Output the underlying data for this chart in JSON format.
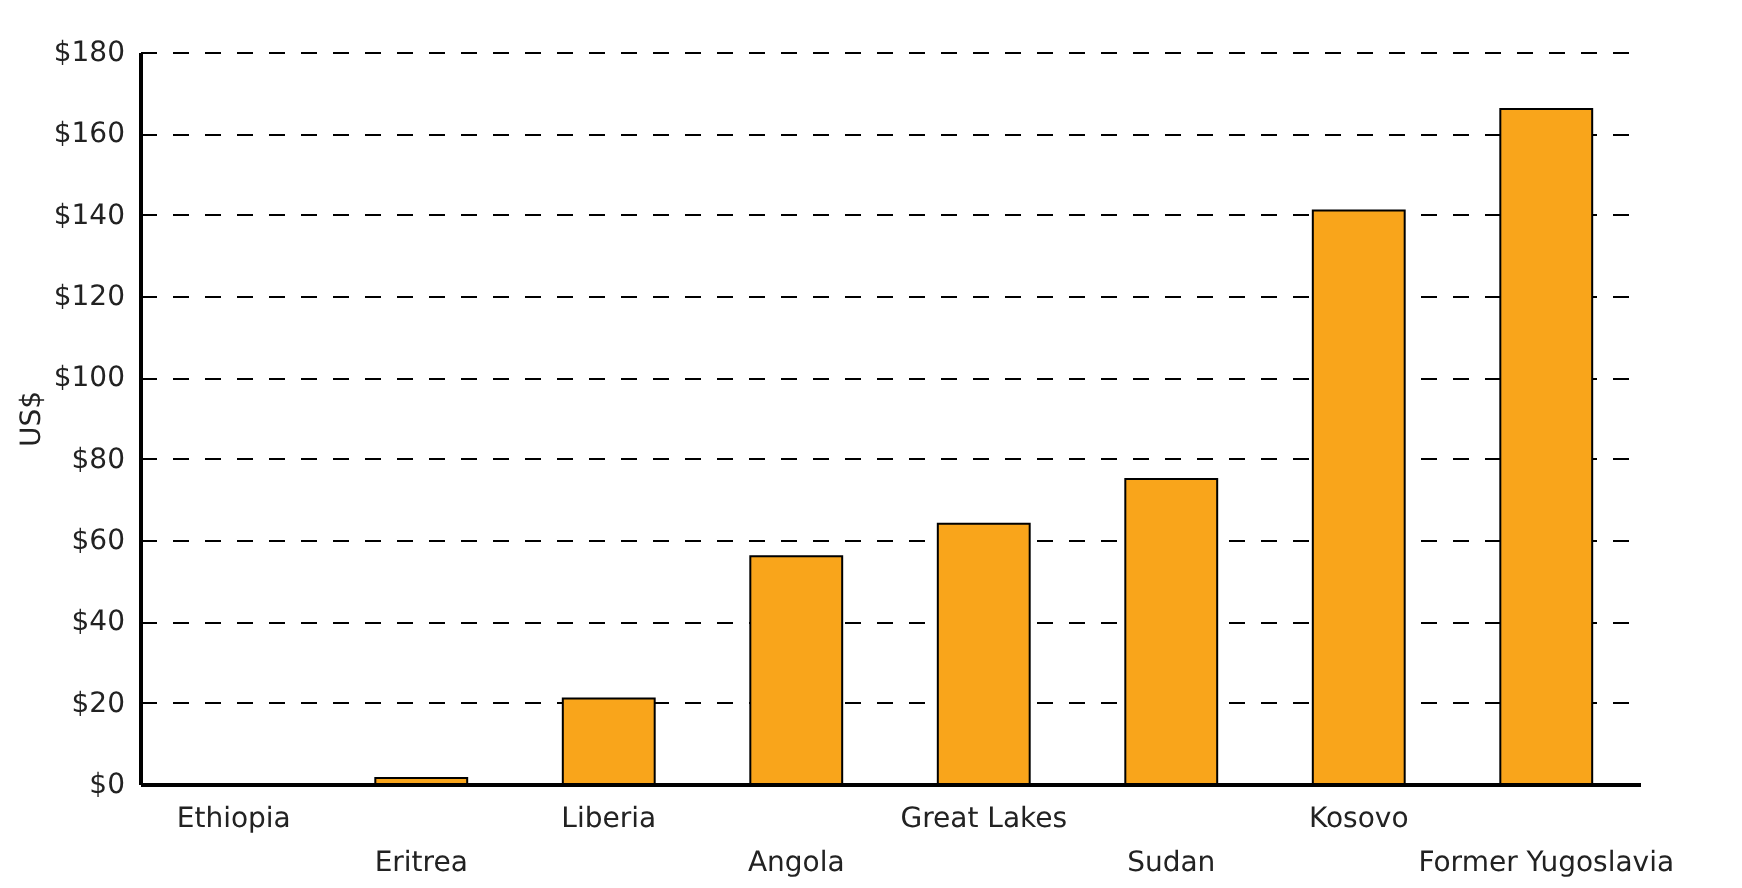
{
  "chart_data": {
    "type": "bar",
    "ylabel": "US$",
    "categories": [
      "Ethiopia",
      "Eritrea",
      "Liberia",
      "Angola",
      "Great Lakes",
      "Sudan",
      "Kosovo",
      "Former Yugoslavia"
    ],
    "values": [
      0,
      1.5,
      21,
      56,
      64,
      75,
      141,
      166
    ],
    "color": "#f9a51b",
    "ylim": [
      0,
      180
    ],
    "yticks": [
      {
        "value": 0,
        "label": "$0"
      },
      {
        "value": 20,
        "label": "$20"
      },
      {
        "value": 40,
        "label": "$40"
      },
      {
        "value": 60,
        "label": "$60"
      },
      {
        "value": 80,
        "label": "$80"
      },
      {
        "value": 100,
        "label": "$100"
      },
      {
        "value": 120,
        "label": "$120"
      },
      {
        "value": 140,
        "label": "$140"
      },
      {
        "value": 160,
        "label": "$160"
      },
      {
        "value": 180,
        "label": "$180"
      }
    ],
    "grid": true
  }
}
